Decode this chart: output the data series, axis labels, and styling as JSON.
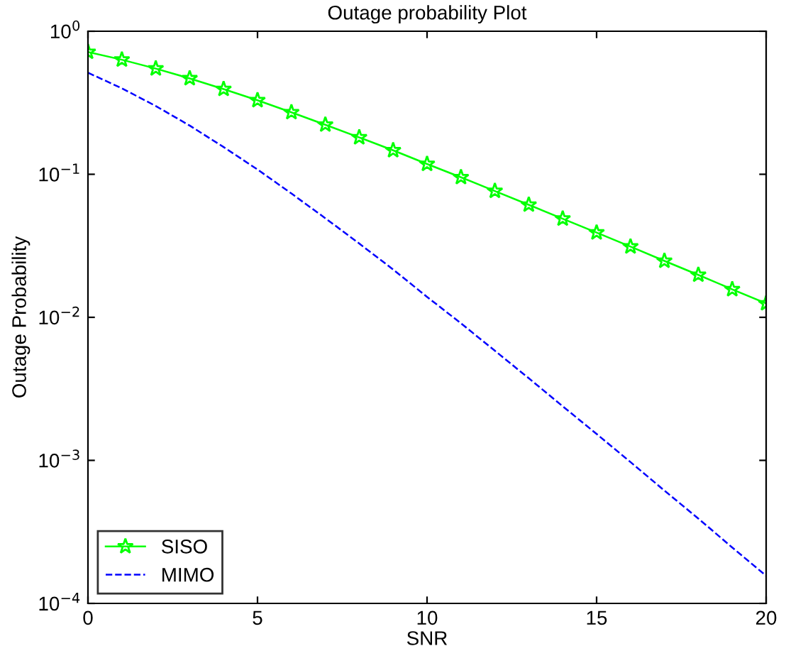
{
  "chart_data": {
    "type": "line",
    "title": "Outage probability Plot",
    "xlabel": "SNR",
    "ylabel": "Outage Probability",
    "log": "y",
    "x": [
      0,
      1,
      2,
      3,
      4,
      5,
      6,
      7,
      8,
      9,
      10,
      11,
      12,
      13,
      14,
      15,
      16,
      17,
      18,
      19,
      20
    ],
    "xlim": [
      0,
      20
    ],
    "xticks": [
      0,
      5,
      10,
      15,
      20
    ],
    "ylim": [
      0.0001,
      1
    ],
    "yticks": [
      {
        "value": 0.0001,
        "label": "10$^{−4}$"
      },
      {
        "value": 0.001,
        "label": "10$^{−3}$"
      },
      {
        "value": 0.01,
        "label": "10$^{−2}$"
      },
      {
        "value": 0.1,
        "label": "10$^{−1}$"
      },
      {
        "value": 1,
        "label": "10$^{0}$"
      }
    ],
    "legend": "bottom left",
    "grid": false,
    "series": [
      {
        "name": "SISO",
        "color": "#00ff00",
        "marker": "star",
        "line_style": "solid",
        "values": [
          0.716,
          0.632,
          0.548,
          0.468,
          0.394,
          0.329,
          0.271,
          0.222,
          0.181,
          0.147,
          0.118,
          0.0953,
          0.0764,
          0.0612,
          0.0489,
          0.0391,
          0.0312,
          0.0248,
          0.0198,
          0.0157,
          0.0125
        ]
      },
      {
        "name": "MIMO",
        "color": "#0000ff",
        "marker": "none",
        "line_style": "dashed",
        "values": [
          0.513,
          0.399,
          0.3,
          0.219,
          0.155,
          0.108,
          0.0734,
          0.0493,
          0.0328,
          0.0216,
          0.0139,
          0.00908,
          0.00584,
          0.00375,
          0.00239,
          0.00153,
          0.000973,
          0.000615,
          0.000392,
          0.000246,
          0.000156
        ]
      }
    ]
  }
}
